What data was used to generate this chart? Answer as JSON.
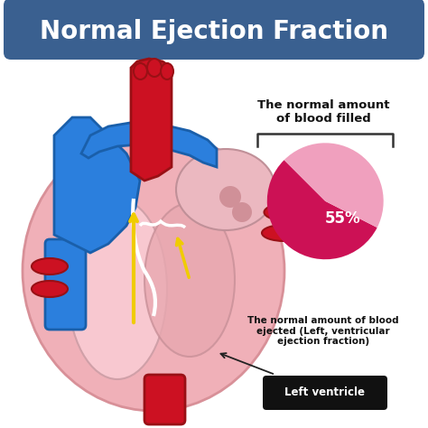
{
  "title": "Normal Ejection Fraction",
  "title_bg_color": "#3a6090",
  "title_text_color": "#ffffff",
  "background_color": "#ffffff",
  "pie_values": [
    55,
    45
  ],
  "pie_colors": [
    "#cc1155",
    "#f0a0be"
  ],
  "pie_label": "55%",
  "pie_label_color": "#ffffff",
  "pie_title": "The normal amount\nof blood filled",
  "pie_subtitle": "The normal amount of blood\nejected (Left, ventricular\nejection fraction)",
  "annotation_label": "Left ventricle",
  "annotation_bg": "#111111",
  "annotation_text_color": "#ffffff",
  "heart_body_color": "#f0b0b8",
  "heart_body_edge": "#d89098",
  "lv_color": "#f5c0c8",
  "rv_color": "#e8a0a8",
  "blue_vessel_color": "#2b7fdd",
  "blue_vessel_edge": "#1a5faa",
  "red_vessel_color": "#cc1122",
  "red_vessel_edge": "#991015"
}
